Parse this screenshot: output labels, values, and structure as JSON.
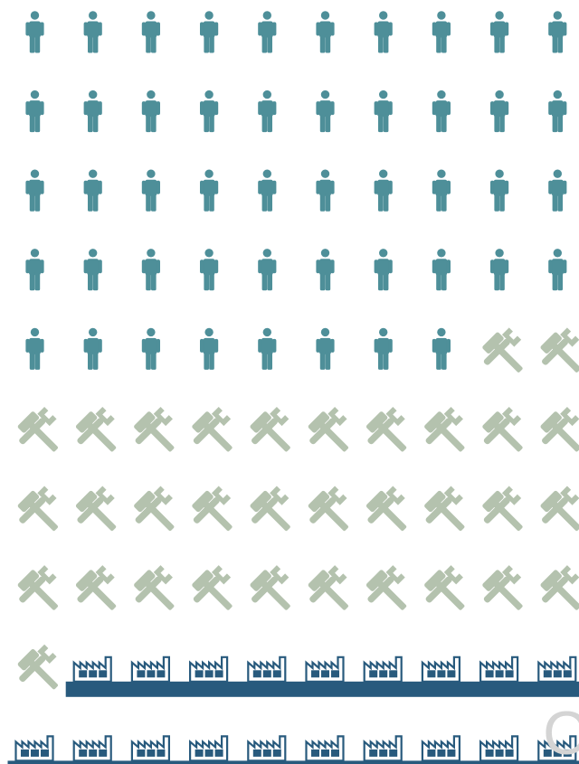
{
  "chart_data": {
    "type": "pictogram",
    "columns": 10,
    "unit": "each icon = 1%",
    "categories": [
      {
        "icon": "person-icon",
        "color": "#4e8f99",
        "count": 48
      },
      {
        "icon": "tools-icon",
        "color": "#b4c2ae",
        "count": 33
      },
      {
        "icon": "factory-icon",
        "color": "#285a7d",
        "count": 19
      }
    ],
    "partial_glyph": {
      "text": "C",
      "color": "#d4d4d4"
    }
  }
}
